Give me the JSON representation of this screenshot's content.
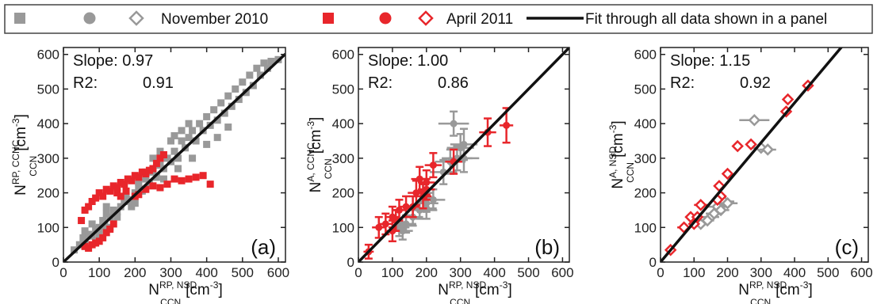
{
  "legend": {
    "nov_label": "November 2010",
    "apr_label": "April 2011",
    "fit_label": "Fit through all data shown in a panel",
    "colors": {
      "november": "#999999",
      "april": "#e8262b",
      "fit": "#111111"
    }
  },
  "chart_data": [
    {
      "type": "scatter",
      "panel_label": "(a)",
      "slope_text": "Slope: 0.97",
      "r2_text": "R2:",
      "r2_value": "0.91",
      "fit_slope": 0.97,
      "xlim": [
        0,
        620
      ],
      "ylim": [
        0,
        620
      ],
      "xticks": [
        0,
        100,
        200,
        300,
        400,
        500,
        600
      ],
      "yticks": [
        0,
        100,
        200,
        300,
        400,
        500,
        600
      ],
      "xlabel": {
        "main": "N",
        "sub": "CCN",
        "sup": "RP, NSD",
        "unit": "[cm",
        "unit_sup": "-3",
        "unit_end": "]"
      },
      "ylabel": {
        "main": "N",
        "sub": "CCN",
        "sup": "RP, CCNC",
        "unit": "[cm",
        "unit_sup": "-3",
        "unit_end": "]"
      },
      "series": [
        {
          "name": "November 2010",
          "marker": "square",
          "filled": true,
          "points": [
            [
              30,
              35
            ],
            [
              45,
              50
            ],
            [
              55,
              70
            ],
            [
              60,
              55
            ],
            [
              70,
              80
            ],
            [
              80,
              75
            ],
            [
              90,
              95
            ],
            [
              100,
              100
            ],
            [
              110,
              120
            ],
            [
              115,
              105
            ],
            [
              120,
              140
            ],
            [
              130,
              130
            ],
            [
              140,
              150
            ],
            [
              150,
              145
            ],
            [
              160,
              160
            ],
            [
              170,
              175
            ],
            [
              175,
              190
            ],
            [
              185,
              180
            ],
            [
              200,
              200
            ],
            [
              210,
              215
            ],
            [
              220,
              205
            ],
            [
              230,
              240
            ],
            [
              240,
              230
            ],
            [
              250,
              260
            ],
            [
              260,
              245
            ],
            [
              270,
              280
            ],
            [
              280,
              270
            ],
            [
              290,
              300
            ],
            [
              300,
              290
            ],
            [
              310,
              320
            ],
            [
              320,
              300
            ],
            [
              330,
              350
            ],
            [
              340,
              330
            ],
            [
              350,
              360
            ],
            [
              360,
              380
            ],
            [
              370,
              350
            ],
            [
              380,
              400
            ],
            [
              390,
              380
            ],
            [
              400,
              420
            ],
            [
              410,
              395
            ],
            [
              420,
              440
            ],
            [
              430,
              410
            ],
            [
              440,
              460
            ],
            [
              450,
              430
            ],
            [
              460,
              480
            ],
            [
              470,
              450
            ],
            [
              480,
              500
            ],
            [
              490,
              470
            ],
            [
              500,
              520
            ],
            [
              510,
              490
            ],
            [
              520,
              540
            ],
            [
              530,
              510
            ],
            [
              540,
              560
            ],
            [
              550,
              540
            ],
            [
              560,
              575
            ],
            [
              570,
              560
            ],
            [
              580,
              580
            ],
            [
              600,
              585
            ],
            [
              250,
              300
            ],
            [
              270,
              320
            ],
            [
              300,
              350
            ],
            [
              310,
              365
            ],
            [
              330,
              380
            ],
            [
              350,
              400
            ],
            [
              280,
              240
            ],
            [
              320,
              270
            ],
            [
              360,
              300
            ],
            [
              400,
              340
            ],
            [
              430,
              360
            ],
            [
              460,
              390
            ],
            [
              150,
              130
            ],
            [
              190,
              160
            ],
            [
              210,
              230
            ],
            [
              230,
              260
            ],
            [
              200,
              170
            ],
            [
              120,
              160
            ],
            [
              100,
              80
            ],
            [
              80,
              110
            ],
            [
              60,
              90
            ],
            [
              130,
              100
            ]
          ]
        },
        {
          "name": "April 2011",
          "marker": "square",
          "filled": true,
          "points": [
            [
              50,
              120
            ],
            [
              60,
              150
            ],
            [
              70,
              160
            ],
            [
              80,
              175
            ],
            [
              90,
              185
            ],
            [
              100,
              200
            ],
            [
              110,
              190
            ],
            [
              120,
              210
            ],
            [
              130,
              205
            ],
            [
              140,
              220
            ],
            [
              150,
              215
            ],
            [
              160,
              230
            ],
            [
              170,
              225
            ],
            [
              180,
              240
            ],
            [
              190,
              235
            ],
            [
              200,
              250
            ],
            [
              210,
              245
            ],
            [
              220,
              260
            ],
            [
              230,
              255
            ],
            [
              240,
              265
            ],
            [
              250,
              270
            ],
            [
              260,
              285
            ],
            [
              270,
              300
            ],
            [
              280,
              310
            ],
            [
              60,
              45
            ],
            [
              70,
              40
            ],
            [
              80,
              50
            ],
            [
              90,
              55
            ],
            [
              100,
              60
            ],
            [
              110,
              70
            ],
            [
              120,
              85
            ],
            [
              130,
              95
            ],
            [
              140,
              110
            ],
            [
              200,
              190
            ],
            [
              210,
              195
            ],
            [
              230,
              210
            ],
            [
              250,
              220
            ],
            [
              270,
              215
            ],
            [
              290,
              225
            ],
            [
              310,
              240
            ],
            [
              330,
              235
            ],
            [
              350,
              240
            ],
            [
              370,
              245
            ],
            [
              390,
              250
            ],
            [
              410,
              225
            ],
            [
              150,
              200
            ],
            [
              160,
              190
            ],
            [
              175,
              205
            ]
          ]
        }
      ]
    },
    {
      "type": "scatter",
      "panel_label": "(b)",
      "slope_text": "Slope: 1.00",
      "r2_text": "R2:",
      "r2_value": "0.86",
      "fit_slope": 1.0,
      "xlim": [
        0,
        620
      ],
      "ylim": [
        0,
        620
      ],
      "xticks": [
        0,
        100,
        200,
        300,
        400,
        500,
        600
      ],
      "yticks": [
        0,
        100,
        200,
        300,
        400,
        500,
        600
      ],
      "xlabel": {
        "main": "N",
        "sub": "CCN",
        "sup": "RP, NSD",
        "unit": "[cm",
        "unit_sup": "-3",
        "unit_end": "]"
      },
      "ylabel": {
        "main": "N",
        "sub": "CCN",
        "sup": "A, CCNC",
        "unit": "[cm",
        "unit_sup": "-3",
        "unit_end": "]"
      },
      "series": [
        {
          "name": "November 2010",
          "marker": "circle",
          "filled": true,
          "points": [
            [
              120,
              100,
              30,
              25
            ],
            [
              140,
              110,
              30,
              25
            ],
            [
              160,
              130,
              30,
              25
            ],
            [
              180,
              150,
              30,
              25
            ],
            [
              200,
              170,
              35,
              25
            ],
            [
              220,
              180,
              35,
              30
            ],
            [
              250,
              260,
              40,
              35
            ],
            [
              270,
              290,
              45,
              35
            ],
            [
              290,
              300,
              45,
              35
            ],
            [
              310,
              300,
              45,
              40
            ],
            [
              300,
              330,
              40,
              40
            ],
            [
              310,
              340,
              40,
              45
            ],
            [
              280,
              400,
              45,
              35
            ],
            [
              200,
              155,
              30,
              30
            ],
            [
              190,
              200,
              30,
              30
            ],
            [
              130,
              90,
              30,
              25
            ]
          ]
        },
        {
          "name": "April 2011",
          "marker": "circle",
          "filled": true,
          "points": [
            [
              30,
              30,
              15,
              20
            ],
            [
              60,
              100,
              20,
              30
            ],
            [
              80,
              110,
              20,
              30
            ],
            [
              100,
              90,
              20,
              30
            ],
            [
              110,
              120,
              20,
              30
            ],
            [
              120,
              150,
              20,
              30
            ],
            [
              140,
              160,
              20,
              30
            ],
            [
              160,
              160,
              20,
              30
            ],
            [
              170,
              200,
              25,
              35
            ],
            [
              180,
              240,
              25,
              35
            ],
            [
              190,
              190,
              25,
              35
            ],
            [
              200,
              230,
              25,
              35
            ],
            [
              220,
              280,
              25,
              35
            ],
            [
              280,
              290,
              25,
              35
            ],
            [
              380,
              375,
              25,
              40
            ],
            [
              435,
              395,
              20,
              50
            ],
            [
              100,
              130,
              20,
              30
            ],
            [
              200,
              210,
              25,
              30
            ]
          ]
        }
      ]
    },
    {
      "type": "scatter",
      "panel_label": "(c)",
      "slope_text": "Slope: 1.15",
      "r2_text": "R2:",
      "r2_value": "0.92",
      "fit_slope": 1.15,
      "xlim": [
        0,
        620
      ],
      "ylim": [
        0,
        620
      ],
      "xticks": [
        0,
        100,
        200,
        300,
        400,
        500,
        600
      ],
      "yticks": [
        0,
        100,
        200,
        300,
        400,
        500,
        600
      ],
      "xlabel": {
        "main": "N",
        "sub": "CCN",
        "sup": "RP, NSD",
        "unit": "[cm",
        "unit_sup": "-3",
        "unit_end": "]"
      },
      "ylabel": {
        "main": "N",
        "sub": "CCN",
        "sup": "A, NSD",
        "unit": "[cm",
        "unit_sup": "-3",
        "unit_end": "]"
      },
      "series": [
        {
          "name": "November 2010",
          "marker": "diamond",
          "filled": false,
          "points": [
            [
              120,
              110,
              20
            ],
            [
              150,
              130,
              25
            ],
            [
              170,
              160,
              30
            ],
            [
              190,
              175,
              30
            ],
            [
              180,
              150,
              25
            ],
            [
              200,
              170,
              30
            ],
            [
              160,
              140,
              25
            ],
            [
              140,
              120,
              20
            ],
            [
              280,
              410,
              45
            ],
            [
              300,
              330,
              30
            ],
            [
              320,
              325,
              25
            ]
          ]
        },
        {
          "name": "April 2011",
          "marker": "diamond",
          "filled": false,
          "points": [
            [
              30,
              35,
              10
            ],
            [
              70,
              100,
              20
            ],
            [
              90,
              130,
              15
            ],
            [
              100,
              110,
              15
            ],
            [
              110,
              130,
              15
            ],
            [
              120,
              165,
              20
            ],
            [
              175,
              220,
              15
            ],
            [
              180,
              190,
              15
            ],
            [
              200,
              255,
              15
            ],
            [
              230,
              335,
              15
            ],
            [
              270,
              340,
              15
            ],
            [
              375,
              435,
              15
            ],
            [
              380,
              470,
              10
            ],
            [
              440,
              510,
              10
            ],
            [
              170,
              180,
              15
            ]
          ]
        }
      ]
    }
  ]
}
